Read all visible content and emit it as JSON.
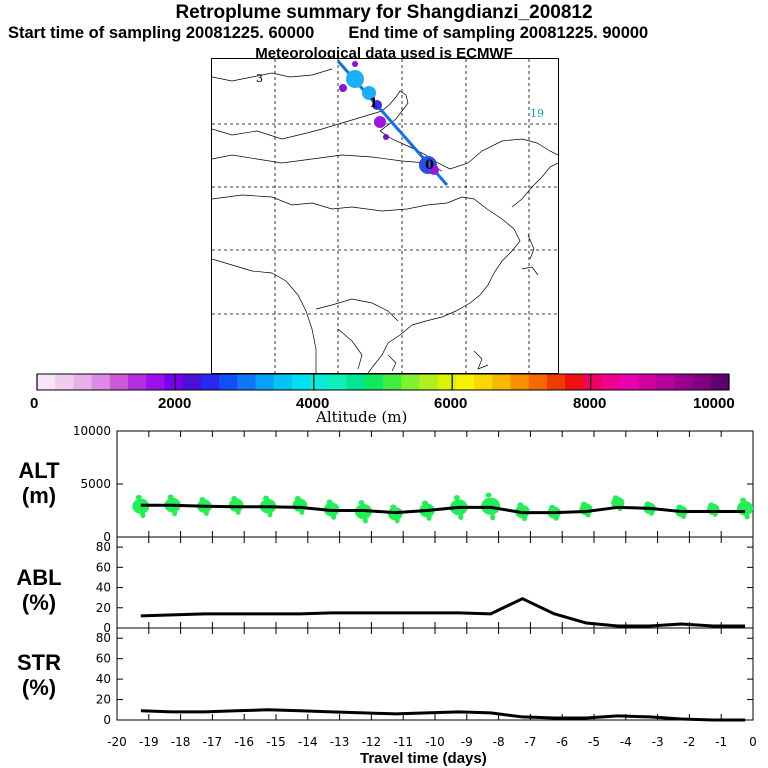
{
  "title": {
    "main": "Retroplume summary for Shangdianzi_200812",
    "start": "Start time of sampling 20081225. 60000",
    "end": "End time of sampling 20081225. 90000",
    "meteo": "Meteorological data used is ECMWF"
  },
  "map": {
    "label_numbers": [
      "3",
      "19",
      "1",
      "0"
    ]
  },
  "colorbar": {
    "xlabel": "Altitude (m)",
    "ticks": [
      "0",
      "2000",
      "4000",
      "6000",
      "8000",
      "10000"
    ],
    "colors": [
      "#f7e6f7",
      "#efcdef",
      "#e8b0ea",
      "#dc8ce6",
      "#cc5ad8",
      "#b42ee0",
      "#9a10e8",
      "#7a00f0",
      "#4a10d8",
      "#2a28f0",
      "#1050f5",
      "#1078f8",
      "#0aa0f8",
      "#00c4f4",
      "#00e0f0",
      "#08ecd8",
      "#10f0b8",
      "#00e890",
      "#10e860",
      "#40ec40",
      "#80f030",
      "#b0f020",
      "#d8f400",
      "#f4f400",
      "#f8d800",
      "#f8b800",
      "#f89000",
      "#f86800",
      "#f03c00",
      "#f01010",
      "#f00060",
      "#f00090",
      "#e800b0",
      "#d000a0",
      "#b8009c",
      "#9a0090",
      "#800080",
      "#600070"
    ],
    "accent": "#000000"
  },
  "panels": {
    "alt_label": "ALT\n(m)",
    "abl_label": "ABL\n(%)",
    "str_label": "STR\n(%)"
  },
  "x_axis_label": "Travel time (days)",
  "chart_data": [
    {
      "type": "line",
      "panel": "ALT",
      "title": "",
      "ylabel": "ALT (m)",
      "xlabel": "Travel time (days)",
      "ylim": [
        0,
        10000
      ],
      "yticks": [
        "10000",
        "5000",
        "0"
      ],
      "ytick_values": [
        10000,
        5000,
        0
      ],
      "xlim": [
        -20,
        0
      ],
      "xticks": [
        "-20",
        "-19",
        "-18",
        "-17",
        "-16",
        "-15",
        "-14",
        "-13",
        "-12",
        "-11",
        "-10",
        "-9",
        "-8",
        "-7",
        "-6",
        "-5",
        "-4",
        "-3",
        "-2",
        "-1",
        "0"
      ],
      "series": [
        {
          "name": "mean altitude",
          "color": "#000000",
          "x": [
            -19.25,
            -18.25,
            -17.25,
            -16.25,
            -15.25,
            -14.25,
            -13.25,
            -12.25,
            -11.25,
            -10.25,
            -9.25,
            -8.25,
            -7.25,
            -6.25,
            -5.25,
            -4.25,
            -3.25,
            -2.25,
            -1.25,
            -0.25
          ],
          "y": [
            3000,
            3000,
            2900,
            2850,
            2850,
            2800,
            2500,
            2500,
            2300,
            2500,
            2800,
            2800,
            2300,
            2300,
            2400,
            2800,
            2700,
            2400,
            2400,
            2400
          ]
        }
      ],
      "blobs": {
        "color": "#22ee55",
        "x": [
          -19.25,
          -18.25,
          -17.25,
          -16.25,
          -15.25,
          -14.25,
          -13.25,
          -12.25,
          -11.25,
          -10.25,
          -9.25,
          -8.25,
          -7.25,
          -6.25,
          -5.25,
          -4.25,
          -3.25,
          -2.25,
          -1.25,
          -0.25
        ],
        "y": [
          2900,
          3000,
          2900,
          3000,
          2900,
          3000,
          2600,
          2400,
          2200,
          2500,
          2800,
          2900,
          2400,
          2300,
          2600,
          3200,
          2700,
          2400,
          2600,
          2700
        ],
        "spread": [
          1200,
          1100,
          900,
          900,
          1100,
          900,
          1000,
          1200,
          900,
          1000,
          1300,
          1500,
          900,
          700,
          700,
          700,
          600,
          600,
          600,
          1100
        ]
      }
    },
    {
      "type": "line",
      "panel": "ABL",
      "ylabel": "ABL (%)",
      "ylim": [
        0,
        90
      ],
      "yticks": [
        "80",
        "60",
        "40",
        "20",
        "0"
      ],
      "ytick_values": [
        80,
        60,
        40,
        20,
        0
      ],
      "xlim": [
        -20,
        0
      ],
      "series": [
        {
          "name": "ABL fraction",
          "color": "#000000",
          "x": [
            -19.25,
            -18.25,
            -17.25,
            -16.25,
            -15.25,
            -14.25,
            -13.25,
            -12.25,
            -11.25,
            -10.25,
            -9.25,
            -8.25,
            -7.25,
            -6.25,
            -5.25,
            -4.25,
            -3.25,
            -2.25,
            -1.25,
            -0.25
          ],
          "y": [
            12,
            13,
            14,
            14,
            14,
            14,
            15,
            15,
            15,
            15,
            15,
            14,
            29,
            14,
            5,
            2,
            2,
            4,
            2,
            2
          ]
        }
      ]
    },
    {
      "type": "line",
      "panel": "STR",
      "ylabel": "STR (%)",
      "ylim": [
        0,
        90
      ],
      "yticks": [
        "80",
        "60",
        "40",
        "20",
        "0"
      ],
      "ytick_values": [
        80,
        60,
        40,
        20,
        0
      ],
      "xlim": [
        -20,
        0
      ],
      "series": [
        {
          "name": "stratosphere fraction",
          "color": "#000000",
          "x": [
            -19.25,
            -18.25,
            -17.25,
            -16.25,
            -15.25,
            -14.25,
            -13.25,
            -12.25,
            -11.25,
            -10.25,
            -9.25,
            -8.25,
            -7.25,
            -6.25,
            -5.25,
            -4.25,
            -3.25,
            -2.25,
            -1.25,
            -0.25
          ],
          "y": [
            9,
            8,
            8,
            9,
            10,
            9,
            8,
            7,
            6,
            7,
            8,
            7,
            3,
            2,
            2,
            4,
            3,
            1,
            0,
            0
          ]
        }
      ]
    }
  ]
}
